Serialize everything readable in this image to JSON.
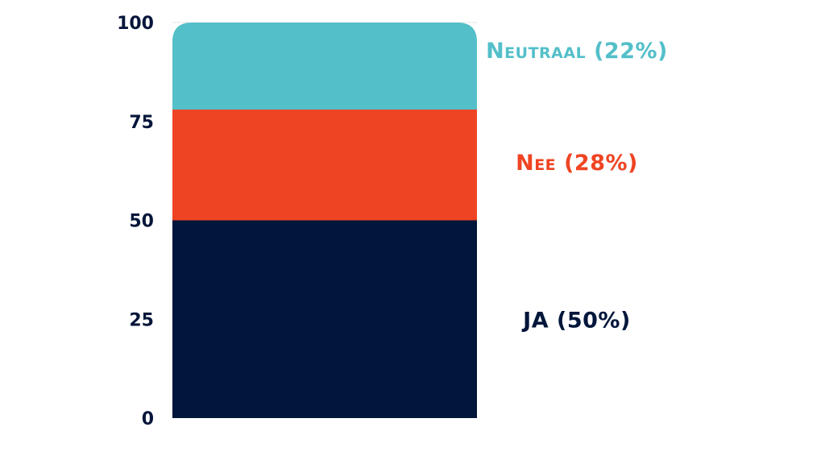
{
  "chart_data": {
    "type": "bar",
    "stacked": true,
    "categories": [
      ""
    ],
    "ylim": [
      0,
      100
    ],
    "yticks": [
      0,
      25,
      50,
      75,
      100
    ],
    "grid": false,
    "series": [
      {
        "name": "JA (50%)",
        "values": [
          50
        ],
        "color": "#00163a"
      },
      {
        "name": "Nee (28%)",
        "values": [
          28
        ],
        "color": "#ef4423"
      },
      {
        "name": "Neutraal (22%)",
        "values": [
          22
        ],
        "color": "#53bfc9"
      }
    ]
  }
}
